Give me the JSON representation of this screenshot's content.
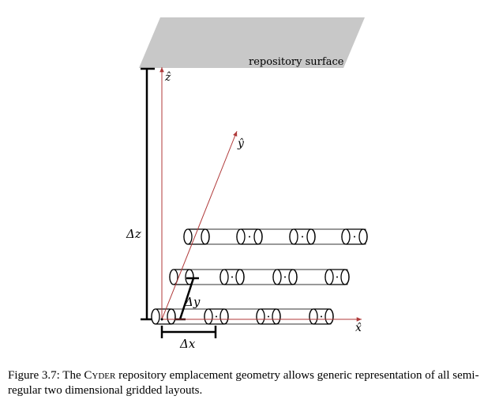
{
  "figure": {
    "surface_label": "repository surface",
    "axis_z": "ẑ",
    "axis_y": "ŷ",
    "axis_x": "x̂",
    "delta_z": "Δz",
    "delta_y": "Δy",
    "delta_x": "Δx",
    "colors": {
      "surface": "#c8c8c8",
      "axis": "#b03a3a",
      "line": "#000000"
    }
  },
  "caption": {
    "prefix": "Figure 3.7: The ",
    "name": "Cyder",
    "rest": " repository emplacement geometry allows generic representation of all semi-regular two dimensional gridded layouts."
  }
}
